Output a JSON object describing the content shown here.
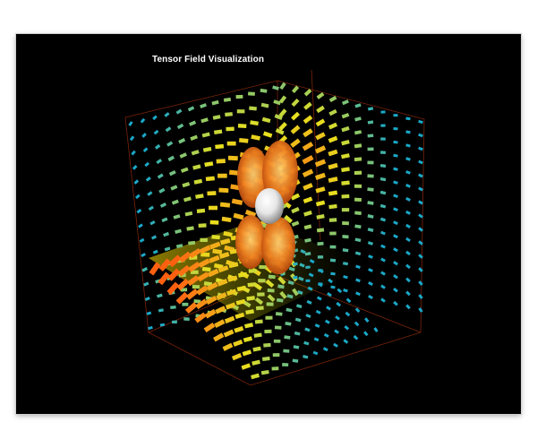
{
  "title": "Tensor Field Visualization",
  "watermark_text": "",
  "colors": {
    "background": "#000000",
    "frame": "#ffffff",
    "box_edges": "#8a2a0a",
    "glyph_low": "#1aa8c8",
    "glyph_mid": "#e8e020",
    "glyph_high": "#ff5a10",
    "central_sphere": "#f2f2f2",
    "petal_orange": "#e8701a"
  },
  "icons": {
    "sphere": "central-sphere",
    "lobes": "orange-lobe-glyph"
  }
}
